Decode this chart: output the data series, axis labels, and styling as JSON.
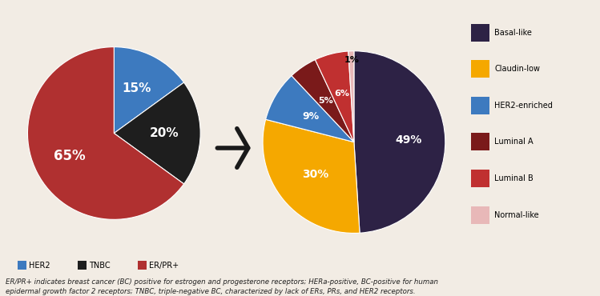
{
  "pie1": {
    "labels": [
      "HER2",
      "TNBC",
      "ER/PR+"
    ],
    "values": [
      15,
      20,
      65
    ],
    "colors": [
      "#3d7abf",
      "#1e1e1e",
      "#b03030"
    ],
    "pct_labels": [
      "15%",
      "20%",
      "65%"
    ],
    "pct_colors": [
      "white",
      "white",
      "white"
    ]
  },
  "pie2": {
    "labels": [
      "Basal-like",
      "Claudin-low",
      "HER2-enriched",
      "Luminal A",
      "Luminal B",
      "Normal-like"
    ],
    "values": [
      49,
      30,
      9,
      5,
      6,
      1
    ],
    "colors": [
      "#2d2245",
      "#f5a800",
      "#3d7abf",
      "#7a1a1a",
      "#c03030",
      "#e8b8b8"
    ],
    "pct_labels": [
      "49%",
      "30%",
      "9%",
      "5%",
      "6%",
      "1%"
    ],
    "pct_colors": [
      "white",
      "white",
      "white",
      "white",
      "white",
      "black"
    ]
  },
  "legend1": {
    "labels": [
      "HER2",
      "TNBC",
      "ER/PR+"
    ],
    "colors": [
      "#3d7abf",
      "#1e1e1e",
      "#b03030"
    ]
  },
  "legend2": {
    "labels": [
      "Basal-like",
      "Claudin-low",
      "HER2-enriched",
      "Luminal A",
      "Luminal B",
      "Normal-like"
    ],
    "colors": [
      "#2d2245",
      "#f5a800",
      "#3d7abf",
      "#7a1a1a",
      "#c03030",
      "#e8b8b8"
    ]
  },
  "footnote": "ER/PR+ indicates breast cancer (BC) positive for estrogen and progesterone receptors; HERa-positive, BC-positive for human\nepidermal growth factor 2 receptors; TNBC, triple-negative BC, characterized by lack of ERs, PRs, and HER2 receptors.",
  "bg_color": "#f2ece4"
}
